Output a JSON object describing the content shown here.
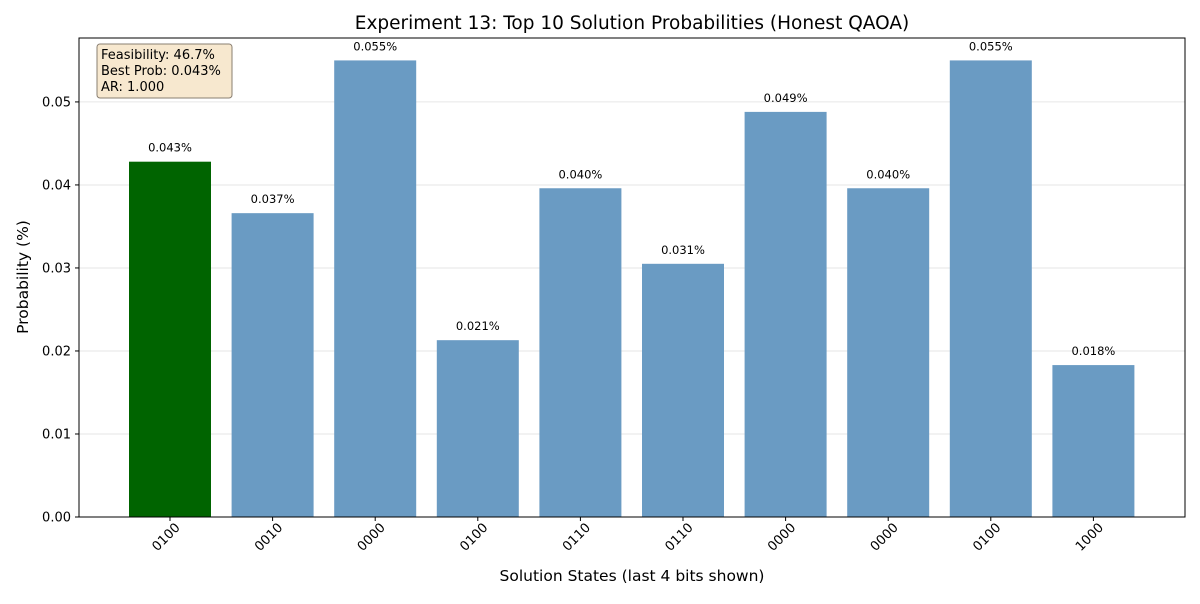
{
  "chart_data": {
    "type": "bar",
    "title": "Experiment 13: Top 10 Solution Probabilities (Honest QAOA)",
    "xlabel": "Solution States (last 4 bits shown)",
    "ylabel": "Probability (%)",
    "categories": [
      "0100",
      "0010",
      "0000",
      "0100",
      "0110",
      "0110",
      "0000",
      "0000",
      "0100",
      "1000"
    ],
    "values": [
      0.0428,
      0.0366,
      0.055,
      0.0213,
      0.0396,
      0.0305,
      0.0488,
      0.0396,
      0.055,
      0.0183
    ],
    "value_labels": [
      "0.043%",
      "0.037%",
      "0.055%",
      "0.021%",
      "0.040%",
      "0.031%",
      "0.049%",
      "0.040%",
      "0.055%",
      "0.018%"
    ],
    "highlight_index": 0,
    "ylim": [
      0,
      0.0577
    ],
    "yticks": [
      0.0,
      0.01,
      0.02,
      0.03,
      0.04,
      0.05
    ],
    "ytick_labels": [
      "0.00",
      "0.01",
      "0.02",
      "0.03",
      "0.04",
      "0.05"
    ],
    "grid": "y-axis, light",
    "colors": {
      "highlight": "#006400",
      "default": "#6a9bc3",
      "grid": "#e6e6e6",
      "info_box_fill": "#f7e8cf",
      "info_box_edge": "#8a7f72"
    },
    "info_box": {
      "lines": [
        "Feasibility: 46.7%",
        "Best Prob: 0.043%",
        "AR: 1.000"
      ],
      "placement": "top-left"
    }
  }
}
